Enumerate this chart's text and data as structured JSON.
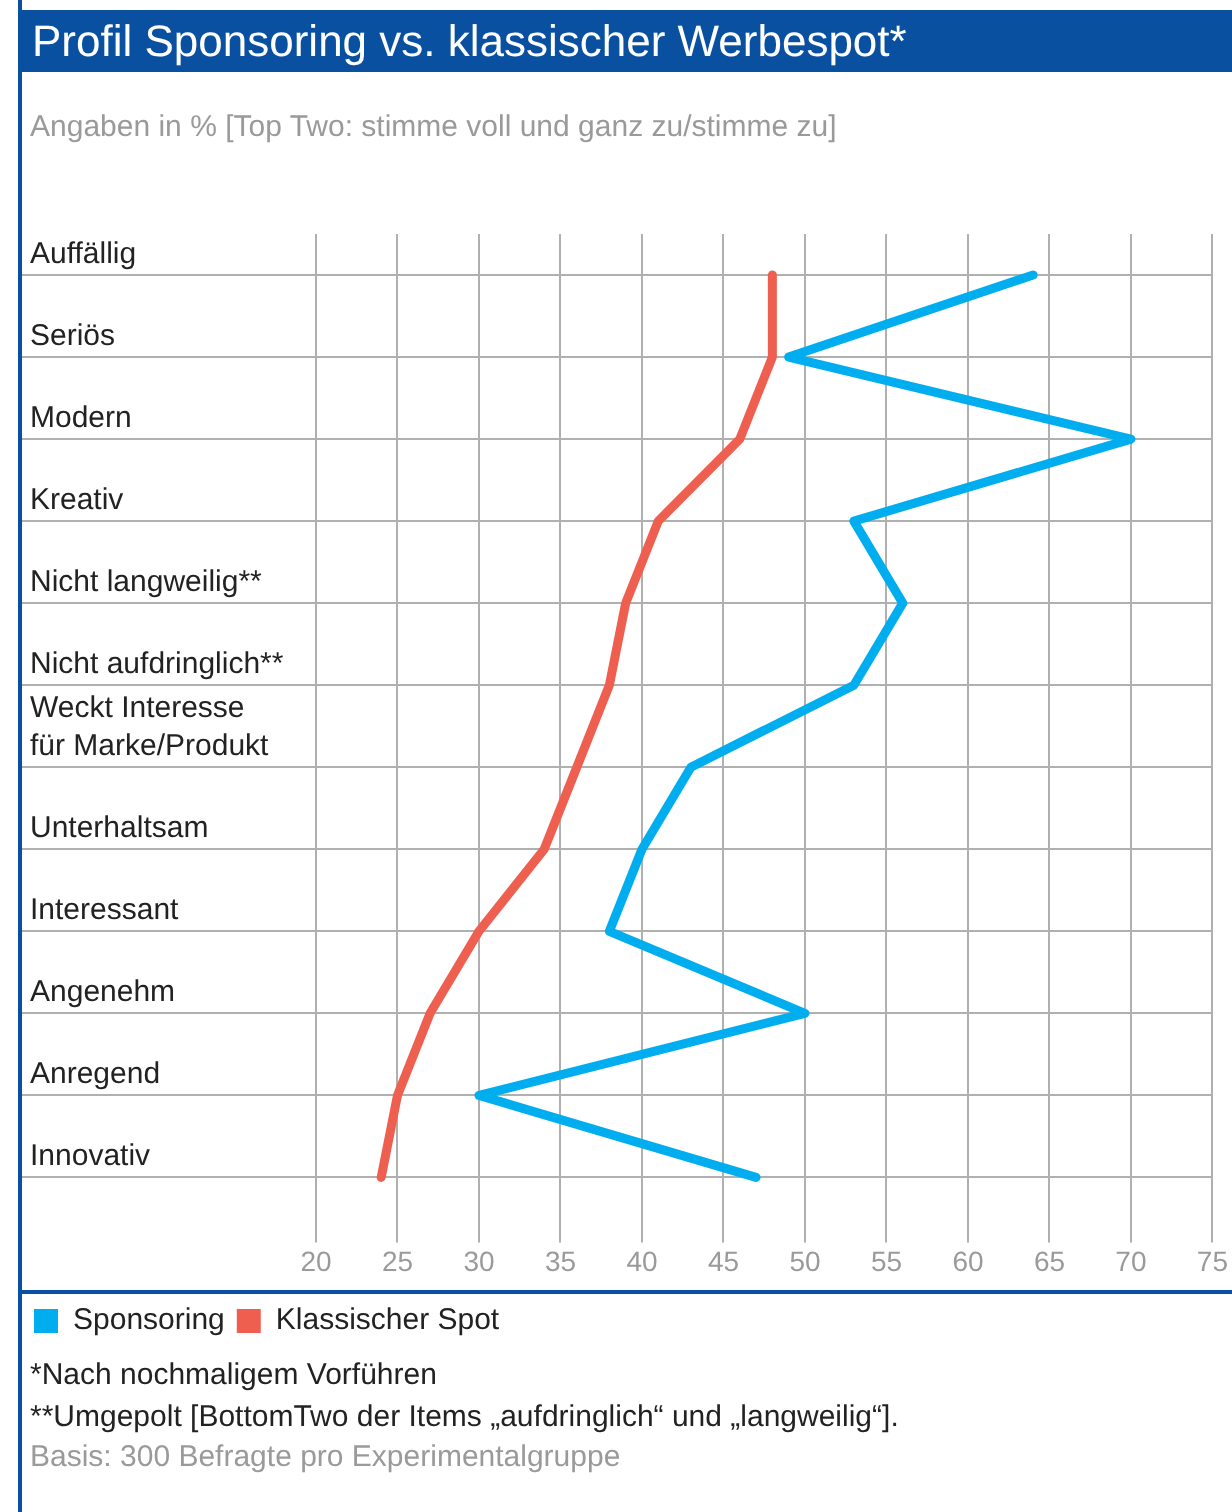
{
  "chart_data": {
    "type": "line",
    "orientation": "horizontal",
    "title": "Profil Sponsoring vs. klassischer Werbespot*",
    "subtitle": "Angaben in % [Top Two: stimme voll und ganz zu/stimme zu]",
    "categories": [
      "Auffällig",
      "Seriös",
      "Modern",
      "Kreativ",
      "Nicht langweilig**",
      "Nicht aufdringlich**",
      "Weckt Interesse\nfür Marke/Produkt",
      "Unterhaltsam",
      "Interessant",
      "Angenehm",
      "Anregend",
      "Innovativ"
    ],
    "series": [
      {
        "name": "Sponsoring",
        "color": "#00aeef",
        "values": [
          64,
          49,
          70,
          53,
          56,
          53,
          43,
          40,
          38,
          50,
          30,
          47
        ]
      },
      {
        "name": "Klassischer Spot",
        "color": "#ee5f50",
        "values": [
          48,
          48,
          46,
          41,
          39,
          38,
          36,
          34,
          30,
          27,
          25,
          24
        ]
      }
    ],
    "xlim": [
      20,
      75
    ],
    "xticks": [
      20,
      25,
      30,
      35,
      40,
      45,
      50,
      55,
      60,
      65,
      70,
      75
    ],
    "grid": true,
    "legend": "bottom left",
    "marker": "none",
    "line_style": "solid",
    "annotations": [
      "*Nach nochmaligem Vorführen",
      "**Umgepolt [BottomTwo der Items „aufdringlich“ und „langweilig“].",
      "Basis: 300 Befragte pro Experimentalgruppe"
    ]
  }
}
